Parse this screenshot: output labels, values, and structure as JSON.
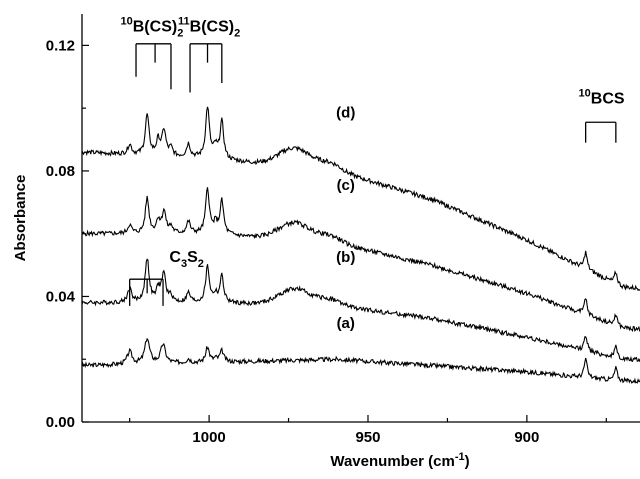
{
  "chart_data": {
    "type": "line",
    "xlabel": "Wavenumber (cm",
    "xlabel_sup": "-1",
    "xlabel_end": ")",
    "ylabel": "Absorbance",
    "xlim": [
      1040,
      843
    ],
    "ylim": [
      0.0,
      0.13
    ],
    "x_ticks": [
      1000,
      950,
      900,
      850
    ],
    "y_ticks": [
      0.0,
      0.04,
      0.08,
      0.12
    ],
    "y_tick_labels": [
      "0.00",
      "0.04",
      "0.08",
      "0.12"
    ],
    "grid": false,
    "series": [
      {
        "name": "(a)",
        "baseline": [
          [
            1040,
            0.018
          ],
          [
            1000,
            0.019
          ],
          [
            960,
            0.02
          ],
          [
            930,
            0.018
          ],
          [
            900,
            0.016
          ],
          [
            870,
            0.013
          ],
          [
            843,
            0.012
          ]
        ],
        "band_1": 0.0,
        "band_2": 0.25,
        "band_3": 0.0,
        "c3s2": 1.0,
        "hump": 0.0,
        "label_x": 957,
        "label_y": 0.03
      },
      {
        "name": "(b)",
        "baseline": [
          [
            1040,
            0.038
          ],
          [
            1000,
            0.038
          ],
          [
            960,
            0.037
          ],
          [
            930,
            0.033
          ],
          [
            900,
            0.027
          ],
          [
            870,
            0.02
          ],
          [
            843,
            0.018
          ]
        ],
        "band_1": 0.65,
        "band_2": 0.6,
        "band_3": 0.85,
        "c3s2": 0.45,
        "hump": 0.6,
        "label_x": 957,
        "label_y": 0.051
      },
      {
        "name": "(c)",
        "baseline": [
          [
            1040,
            0.06
          ],
          [
            1000,
            0.06
          ],
          [
            960,
            0.057
          ],
          [
            930,
            0.05
          ],
          [
            900,
            0.041
          ],
          [
            870,
            0.03
          ],
          [
            843,
            0.027
          ]
        ],
        "band_1": 0.7,
        "band_2": 0.75,
        "band_3": 0.85,
        "c3s2": 0.0,
        "hump": 0.65,
        "label_x": 957,
        "label_y": 0.074
      },
      {
        "name": "(d)",
        "baseline": [
          [
            1040,
            0.086
          ],
          [
            1000,
            0.084
          ],
          [
            960,
            0.08
          ],
          [
            930,
            0.071
          ],
          [
            900,
            0.058
          ],
          [
            870,
            0.043
          ],
          [
            843,
            0.04
          ]
        ],
        "band_1": 0.8,
        "band_2": 0.85,
        "band_3": 0.9,
        "c3s2": 0.0,
        "hump": 0.7,
        "label_x": 957,
        "label_y": 0.097
      }
    ],
    "annotations": {
      "b10_cs2": {
        "sup": "10",
        "text": "B(CS)",
        "sub": "2",
        "x": 1018,
        "y": 0.1245
      },
      "b11_cs2": {
        "sup": "11",
        "text": "B(CS)",
        "sub": "2",
        "x": 1000,
        "y": 0.1245
      },
      "b10_cs": {
        "sup": "10",
        "text": "BCS",
        "x": 876.5,
        "y": 0.1015
      },
      "b11_cs": {
        "sup": "11",
        "text": "BCS",
        "x": 856,
        "y": 0.1055
      },
      "c3s2": {
        "text": "C",
        "sub1": "3",
        "text2": "S",
        "sub2": "2",
        "x": 1012.5,
        "y": 0.051
      }
    },
    "brackets": [
      {
        "x1": 1023,
        "x2": 1012,
        "y": 0.1205,
        "drops": [
          [
            1023,
            0.11
          ],
          [
            1017,
            0.1145
          ],
          [
            1012,
            0.106
          ]
        ]
      },
      {
        "x1": 1006,
        "x2": 996,
        "y": 0.1205,
        "drops": [
          [
            1006,
            0.105
          ],
          [
            1000.5,
            0.1145
          ],
          [
            996,
            0.108
          ]
        ]
      },
      {
        "x1": 881.5,
        "x2": 872,
        "y": 0.0955,
        "drops": [
          [
            881.5,
            0.089
          ],
          [
            872,
            0.089
          ]
        ]
      },
      {
        "x1": 860.5,
        "x2": 852,
        "y": 0.0955,
        "drops": [
          [
            860.5,
            0.089
          ],
          [
            852,
            0.089
          ]
        ]
      },
      {
        "x1": 1025,
        "x2": 1014.5,
        "y": 0.0455,
        "drops": [
          [
            1025,
            0.037
          ],
          [
            1019.5,
            0.041
          ],
          [
            1014.5,
            0.037
          ]
        ]
      }
    ]
  }
}
